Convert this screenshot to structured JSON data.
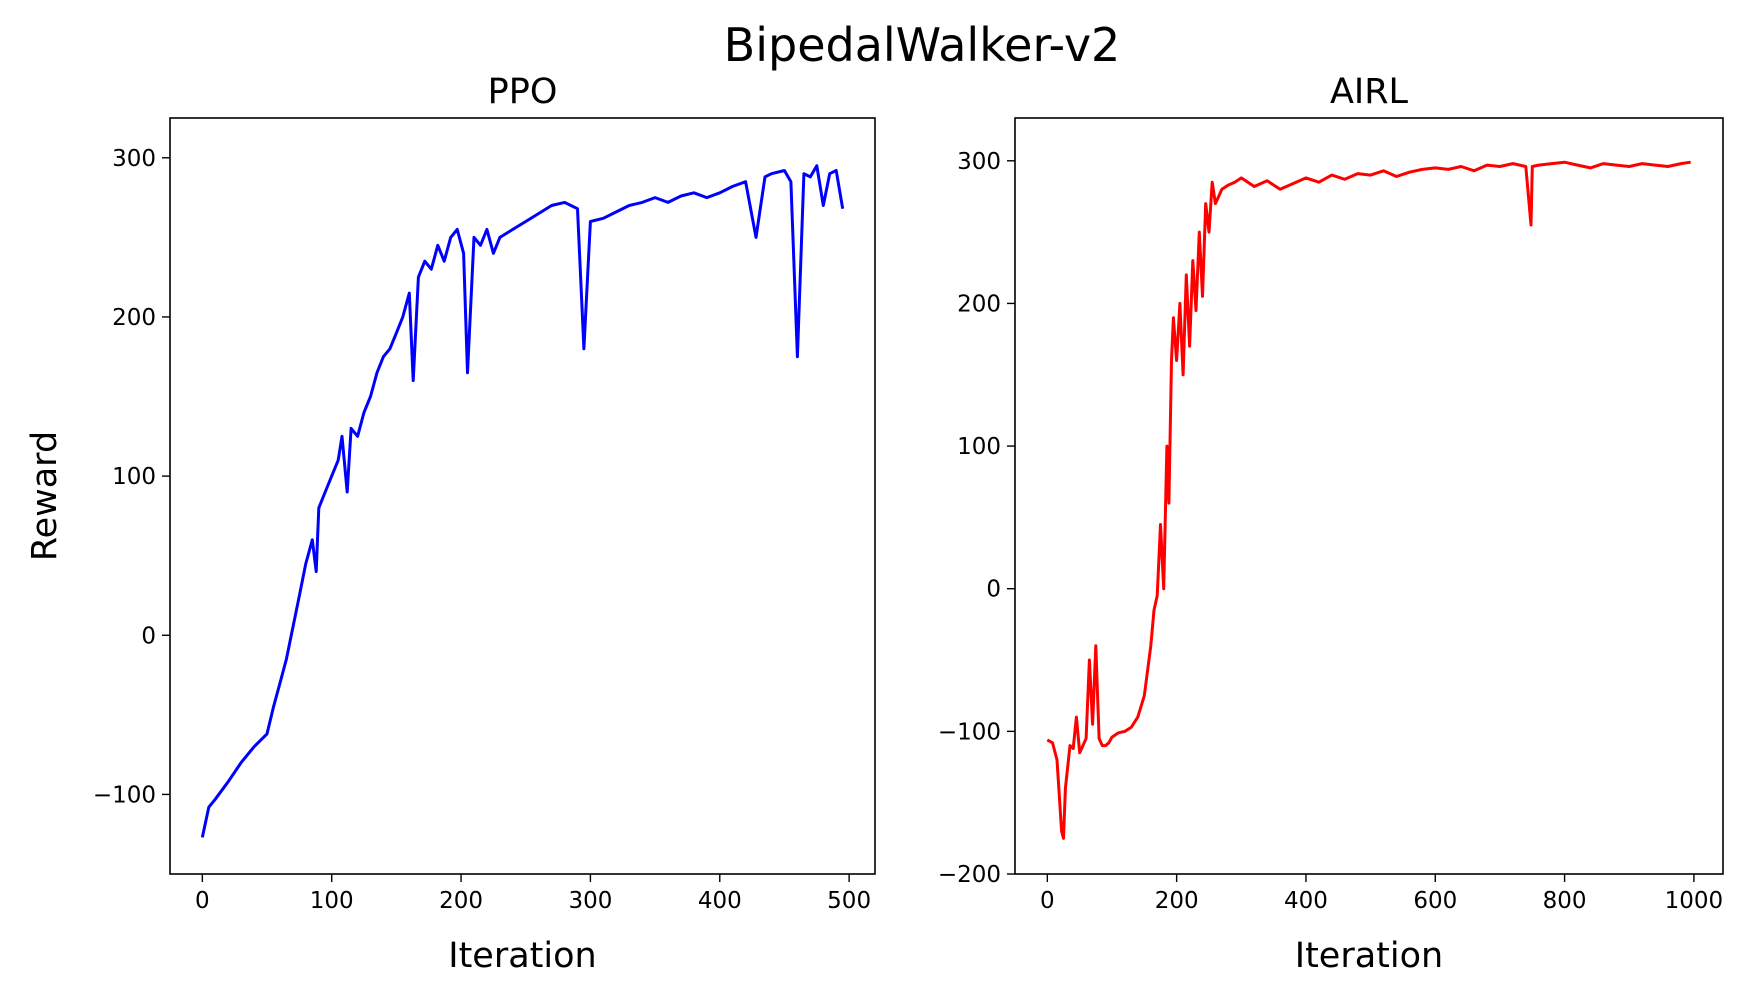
{
  "figure": {
    "title": "BipedalWalker-v2"
  },
  "chart_data": [
    {
      "type": "line",
      "title": "PPO",
      "xlabel": "Iteration",
      "ylabel": "Reward",
      "xlim": [
        -25,
        520
      ],
      "ylim": [
        -150,
        325
      ],
      "xticks": [
        0,
        100,
        200,
        300,
        400,
        500
      ],
      "yticks": [
        -100,
        0,
        100,
        200,
        300
      ],
      "xtick_labels": [
        "0",
        "100",
        "200",
        "300",
        "400",
        "500"
      ],
      "ytick_labels": [
        "−100",
        "0",
        "100",
        "200",
        "300"
      ],
      "grid": false,
      "series": [
        {
          "color": "#0000ff",
          "x": [
            0,
            5,
            10,
            20,
            30,
            40,
            50,
            55,
            60,
            65,
            70,
            75,
            80,
            85,
            88,
            90,
            95,
            100,
            105,
            108,
            112,
            115,
            120,
            125,
            130,
            135,
            140,
            145,
            150,
            155,
            160,
            163,
            167,
            172,
            177,
            182,
            187,
            192,
            197,
            202,
            205,
            210,
            215,
            220,
            225,
            230,
            240,
            250,
            260,
            270,
            280,
            290,
            295,
            300,
            310,
            320,
            330,
            340,
            350,
            360,
            370,
            380,
            390,
            400,
            410,
            420,
            428,
            435,
            440,
            450,
            455,
            460,
            465,
            470,
            475,
            480,
            485,
            490,
            495
          ],
          "y": [
            -127,
            -108,
            -103,
            -92,
            -80,
            -70,
            -62,
            -45,
            -30,
            -15,
            5,
            25,
            45,
            60,
            40,
            80,
            90,
            100,
            110,
            125,
            90,
            130,
            125,
            140,
            150,
            165,
            175,
            180,
            190,
            200,
            215,
            160,
            225,
            235,
            230,
            245,
            235,
            250,
            255,
            240,
            165,
            250,
            245,
            255,
            240,
            250,
            255,
            260,
            265,
            270,
            272,
            268,
            180,
            260,
            262,
            266,
            270,
            272,
            275,
            272,
            276,
            278,
            275,
            278,
            282,
            285,
            250,
            288,
            290,
            292,
            285,
            175,
            290,
            288,
            295,
            270,
            290,
            292,
            268
          ]
        }
      ]
    },
    {
      "type": "line",
      "title": "AIRL",
      "xlabel": "Iteration",
      "ylabel": "",
      "xlim": [
        -50,
        1045
      ],
      "ylim": [
        -200,
        330
      ],
      "xticks": [
        0,
        200,
        400,
        600,
        800,
        1000
      ],
      "yticks": [
        -200,
        -100,
        0,
        100,
        200,
        300
      ],
      "xtick_labels": [
        "0",
        "200",
        "400",
        "600",
        "800",
        "1000"
      ],
      "ytick_labels": [
        "−200",
        "−100",
        "0",
        "100",
        "200",
        "300"
      ],
      "grid": false,
      "series": [
        {
          "color": "#ff0000",
          "x": [
            0,
            8,
            15,
            22,
            25,
            28,
            35,
            40,
            45,
            50,
            55,
            60,
            65,
            70,
            75,
            80,
            85,
            90,
            95,
            100,
            110,
            120,
            130,
            140,
            150,
            160,
            165,
            170,
            175,
            180,
            185,
            188,
            192,
            195,
            200,
            205,
            210,
            215,
            220,
            225,
            230,
            235,
            240,
            245,
            250,
            255,
            260,
            270,
            280,
            290,
            300,
            320,
            340,
            360,
            380,
            400,
            420,
            440,
            460,
            480,
            500,
            520,
            540,
            560,
            580,
            600,
            620,
            640,
            660,
            680,
            700,
            720,
            740,
            748,
            750,
            760,
            780,
            800,
            820,
            840,
            860,
            880,
            900,
            920,
            940,
            960,
            980,
            995
          ],
          "y": [
            -106,
            -108,
            -120,
            -170,
            -175,
            -140,
            -110,
            -112,
            -90,
            -115,
            -110,
            -105,
            -50,
            -95,
            -40,
            -105,
            -110,
            -110,
            -108,
            -104,
            -101,
            -100,
            -97,
            -90,
            -75,
            -40,
            -15,
            -5,
            45,
            0,
            100,
            60,
            160,
            190,
            160,
            200,
            150,
            220,
            170,
            230,
            195,
            250,
            205,
            270,
            250,
            285,
            270,
            280,
            283,
            285,
            288,
            282,
            286,
            280,
            284,
            288,
            285,
            290,
            287,
            291,
            290,
            293,
            289,
            292,
            294,
            295,
            294,
            296,
            293,
            297,
            296,
            298,
            296,
            255,
            296,
            297,
            298,
            299,
            297,
            295,
            298,
            297,
            296,
            298,
            297,
            296,
            298,
            299
          ]
        }
      ]
    }
  ]
}
